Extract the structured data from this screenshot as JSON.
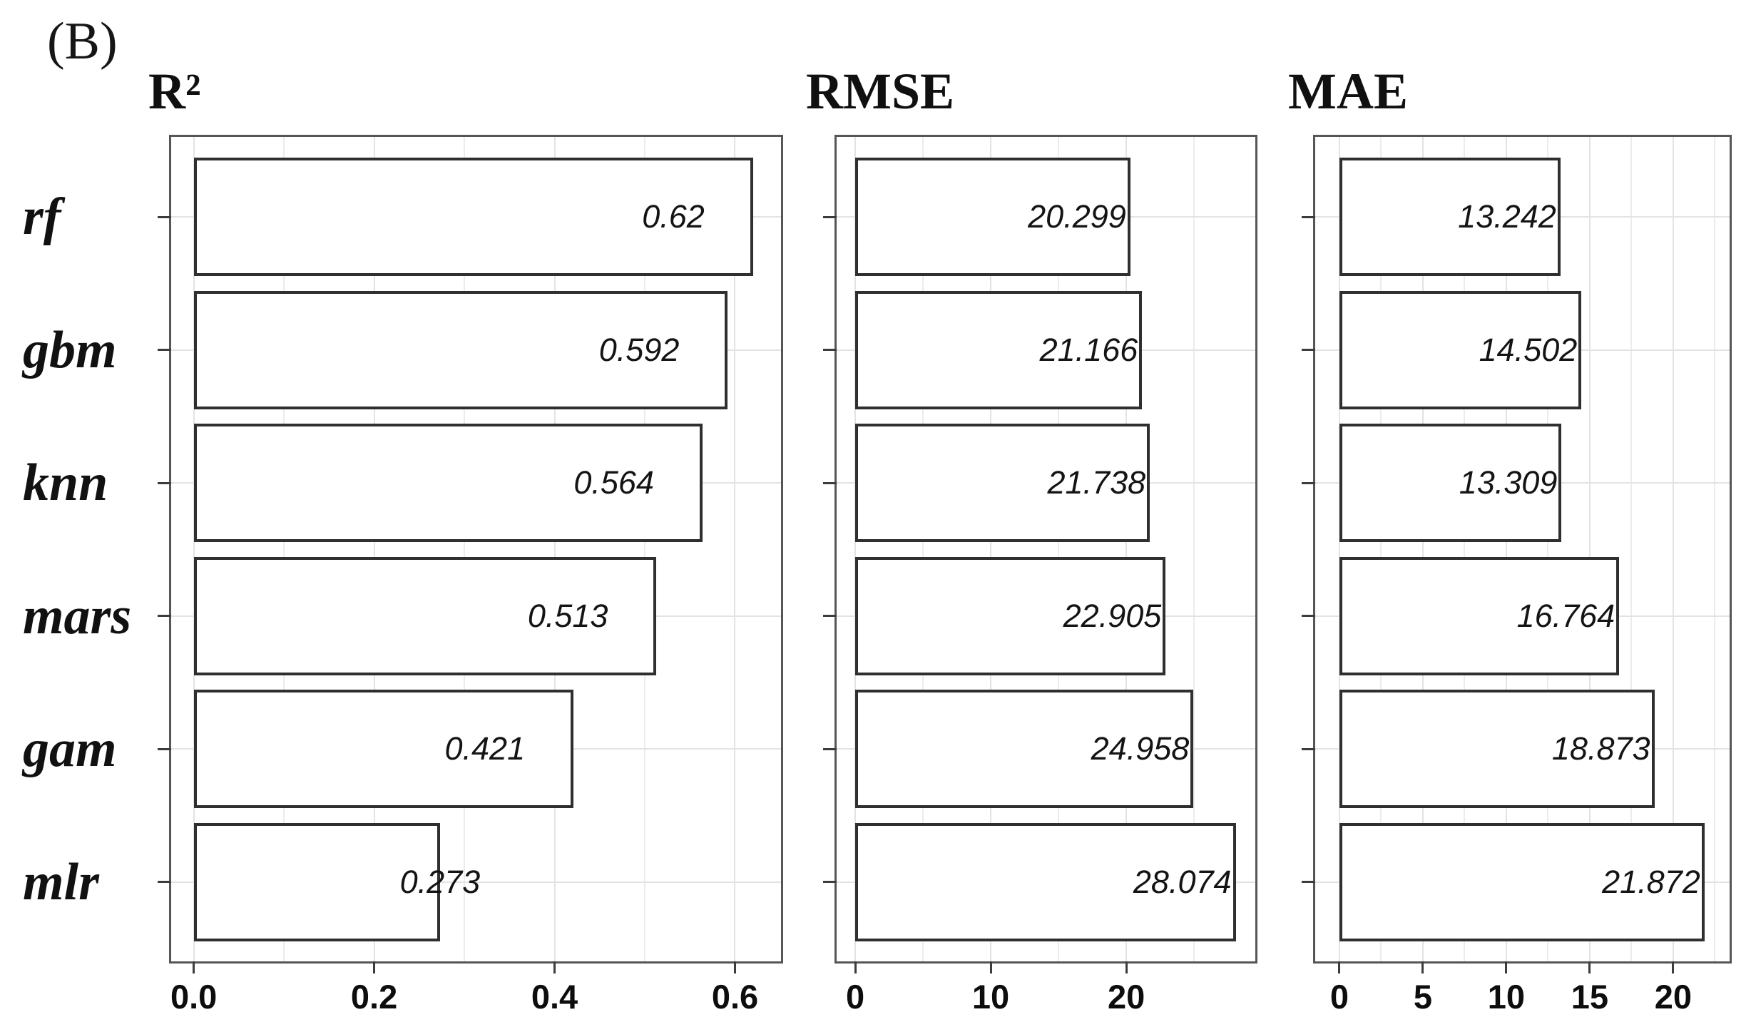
{
  "figure_label": "(B)",
  "chart_data": [
    {
      "type": "bar",
      "orientation": "horizontal",
      "title": "R²",
      "categories": [
        "rf",
        "gbm",
        "knn",
        "mars",
        "gam",
        "mlr"
      ],
      "values": [
        0.62,
        0.592,
        0.564,
        0.513,
        0.421,
        0.273
      ],
      "value_labels": [
        "0.62",
        "0.592",
        "0.564",
        "0.513",
        "0.421",
        "0.273"
      ],
      "xlim": [
        -0.025,
        0.651
      ],
      "x_ticks": [
        0,
        0.2,
        0.4,
        0.6
      ],
      "x_tick_labels": [
        "0.0",
        "0.2",
        "0.4",
        "0.6"
      ],
      "x_minor_ticks": [
        0.1,
        0.3,
        0.5
      ],
      "grid": "light gray: vertical major+minor, horizontal at category centers",
      "legend": "none",
      "bar_fill": "#ffffff",
      "bar_border": "#2f2f2f"
    },
    {
      "type": "bar",
      "orientation": "horizontal",
      "title": "RMSE",
      "categories": [
        "rf",
        "gbm",
        "knn",
        "mars",
        "gam",
        "mlr"
      ],
      "values": [
        20.299,
        21.166,
        21.738,
        22.905,
        24.958,
        28.074
      ],
      "value_labels": [
        "20.299",
        "21.166",
        "21.738",
        "22.905",
        "24.958",
        "28.074"
      ],
      "xlim": [
        -1.37,
        29.52
      ],
      "x_ticks": [
        0,
        10,
        20
      ],
      "x_tick_labels": [
        "0",
        "10",
        "20"
      ],
      "x_minor_ticks": [
        5,
        15,
        25
      ],
      "grid": "light gray: vertical major+minor, horizontal at category centers",
      "legend": "none",
      "bar_fill": "#ffffff",
      "bar_border": "#2f2f2f"
    },
    {
      "type": "bar",
      "orientation": "horizontal",
      "title": "MAE",
      "categories": [
        "rf",
        "gbm",
        "knn",
        "mars",
        "gam",
        "mlr"
      ],
      "values": [
        13.242,
        14.502,
        13.309,
        16.764,
        18.873,
        21.872
      ],
      "value_labels": [
        "13.242",
        "14.502",
        "13.309",
        "16.764",
        "18.873",
        "21.872"
      ],
      "xlim": [
        -1.45,
        23.38
      ],
      "x_ticks": [
        0,
        5,
        10,
        15,
        20
      ],
      "x_tick_labels": [
        "0",
        "5",
        "10",
        "15",
        "20"
      ],
      "x_minor_ticks": [
        2.5,
        7.5,
        12.5,
        17.5,
        22.5
      ],
      "grid": "light gray: vertical major+minor, horizontal at category centers",
      "legend": "none",
      "bar_fill": "#ffffff",
      "bar_border": "#2f2f2f"
    }
  ],
  "styles": {
    "panel_border_color": "#565656",
    "grid_color": "#e8e8e8",
    "bar_fill": "#ffffff",
    "bar_border": "#2f2f2f",
    "text_color": "#141414"
  }
}
